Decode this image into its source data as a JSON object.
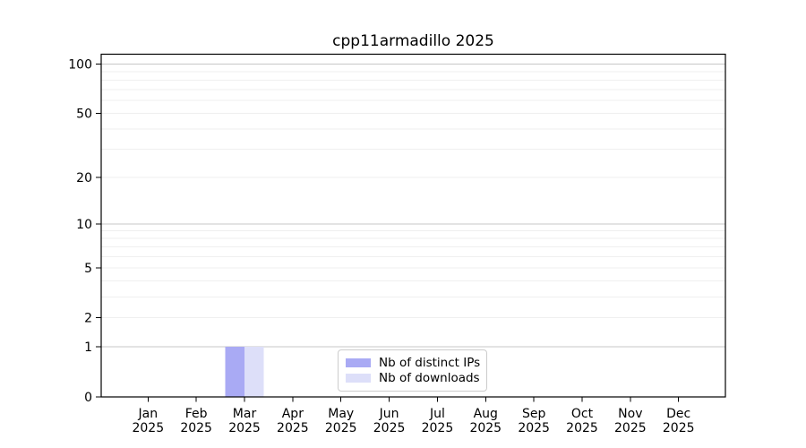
{
  "chart_data": {
    "type": "bar",
    "title": "cpp11armadillo 2025",
    "x_tick_month": [
      "Jan",
      "Feb",
      "Mar",
      "Apr",
      "May",
      "Jun",
      "Jul",
      "Aug",
      "Sep",
      "Oct",
      "Nov",
      "Dec"
    ],
    "x_tick_year": [
      "2025",
      "2025",
      "2025",
      "2025",
      "2025",
      "2025",
      "2025",
      "2025",
      "2025",
      "2025",
      "2025",
      "2025"
    ],
    "y_ticks": [
      0,
      1,
      2,
      5,
      10,
      20,
      50,
      100
    ],
    "y_scale": "log1p",
    "ylim": [
      0,
      115
    ],
    "grid": "horizontal",
    "major_gridlines": [
      1,
      10,
      100
    ],
    "minor_gridlines": [
      2,
      3,
      4,
      5,
      6,
      7,
      8,
      9,
      20,
      30,
      40,
      50,
      60,
      70,
      80,
      90
    ],
    "series": [
      {
        "name": "Nb of distinct IPs",
        "color": "#a9aaf4",
        "values": [
          0,
          0,
          1,
          0,
          0,
          0,
          0,
          0,
          0,
          0,
          0,
          0
        ]
      },
      {
        "name": "Nb of downloads",
        "color": "#dddff9",
        "values": [
          0,
          0,
          1,
          0,
          0,
          0,
          0,
          0,
          0,
          0,
          0,
          0
        ]
      }
    ],
    "legend_position": "inside-bottom-center"
  },
  "colors": {
    "axis": "#000000",
    "text": "#000000",
    "major_grid": "#c7c7c7",
    "minor_grid": "#efefef",
    "legend_border": "#cccccc",
    "background": "#ffffff"
  }
}
